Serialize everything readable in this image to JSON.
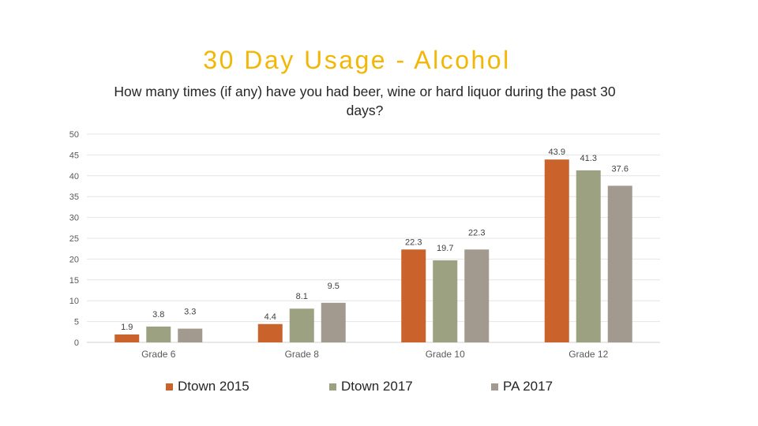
{
  "slide": {
    "title": "30 Day Usage - Alcohol",
    "subtitle": "How many times (if any) have you had beer, wine or hard liquor during the past 30 days?"
  },
  "chart_data": {
    "type": "bar",
    "categories": [
      "Grade 6",
      "Grade 8",
      "Grade 10",
      "Grade 12"
    ],
    "series": [
      {
        "name": "Dtown 2015",
        "color": "#c9622b",
        "values": [
          1.9,
          4.4,
          22.3,
          43.9
        ]
      },
      {
        "name": "Dtown 2017",
        "color": "#9ca281",
        "values": [
          3.8,
          8.1,
          19.7,
          41.3
        ]
      },
      {
        "name": "PA 2017",
        "color": "#a39a8f",
        "values": [
          3.3,
          9.5,
          22.3,
          37.6
        ]
      }
    ],
    "y_ticks": [
      0,
      5,
      10,
      15,
      20,
      25,
      30,
      35,
      40,
      45,
      50
    ],
    "ylim": [
      0,
      50
    ],
    "grid": true,
    "legend_position": "bottom",
    "data_labels": true
  }
}
